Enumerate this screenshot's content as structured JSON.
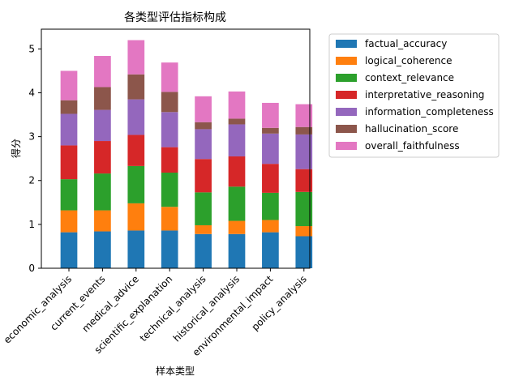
{
  "chart_data": {
    "type": "bar",
    "stacked": true,
    "title": "各类型评估指标构成",
    "xlabel": "样本类型",
    "ylabel": "得分",
    "ylim": [
      0,
      5.45
    ],
    "yticks": [
      0,
      1,
      2,
      3,
      4,
      5
    ],
    "grid": false,
    "legend_position": "right-outside-top",
    "categories": [
      "economic_analysis",
      "current_events",
      "medical_advice",
      "scientific_explanation",
      "technical_analysis",
      "historical_analysis",
      "environmental_impact",
      "policy_analysis"
    ],
    "series": [
      {
        "name": "factual_accuracy",
        "color": "#1f77b4",
        "values": [
          0.82,
          0.84,
          0.86,
          0.86,
          0.78,
          0.78,
          0.82,
          0.73
        ]
      },
      {
        "name": "logical_coherence",
        "color": "#ff7f0e",
        "values": [
          0.5,
          0.48,
          0.62,
          0.54,
          0.2,
          0.3,
          0.28,
          0.23
        ]
      },
      {
        "name": "context_relevance",
        "color": "#2ca02c",
        "values": [
          0.71,
          0.84,
          0.85,
          0.78,
          0.75,
          0.78,
          0.62,
          0.78
        ]
      },
      {
        "name": "interpretative_reasoning",
        "color": "#d62728",
        "values": [
          0.77,
          0.74,
          0.71,
          0.58,
          0.76,
          0.69,
          0.66,
          0.52
        ]
      },
      {
        "name": "information_completeness",
        "color": "#9467bd",
        "values": [
          0.72,
          0.71,
          0.81,
          0.8,
          0.68,
          0.73,
          0.69,
          0.79
        ]
      },
      {
        "name": "hallucination_score",
        "color": "#8c564b",
        "values": [
          0.31,
          0.52,
          0.57,
          0.46,
          0.16,
          0.13,
          0.13,
          0.17
        ]
      },
      {
        "name": "overall_faithfulness",
        "color": "#e377c2",
        "values": [
          0.67,
          0.71,
          0.78,
          0.67,
          0.59,
          0.62,
          0.57,
          0.52
        ]
      }
    ]
  }
}
